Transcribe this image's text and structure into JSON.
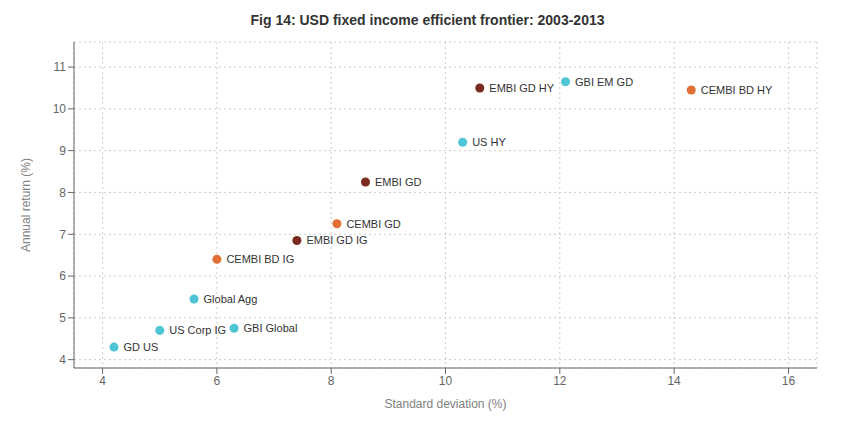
{
  "chart_data": {
    "type": "scatter",
    "title": "Fig 14: USD fixed income efficient frontier: 2003-2013",
    "xlabel": "Standard deviation (%)",
    "ylabel": "Annual return (%)",
    "x": [
      4.2,
      5.0,
      5.6,
      6.3,
      6.0,
      7.4,
      8.1,
      8.6,
      10.3,
      10.6,
      12.1,
      14.3
    ],
    "values": [
      4.3,
      4.7,
      5.45,
      4.75,
      6.4,
      6.85,
      7.25,
      8.25,
      9.2,
      10.5,
      10.65,
      10.45
    ],
    "labels": [
      "GD US",
      "US Corp IG",
      "Global Agg",
      "GBI Global",
      "CEMBI BD IG",
      "EMBI GD IG",
      "CEMBI GD",
      "EMBI GD",
      "US HY",
      "EMBI GD HY",
      "GBI EM GD",
      "CEMBI BD HY"
    ],
    "colors": [
      "#4ec5d4",
      "#4ec5d4",
      "#4ec5d4",
      "#4ec5d4",
      "#e07035",
      "#7b2a1e",
      "#e07035",
      "#7b2a1e",
      "#4ec5d4",
      "#7b2a1e",
      "#4ec5d4",
      "#e07035"
    ],
    "xlim": [
      3.5,
      16.5
    ],
    "ylim": [
      3.8,
      11.6
    ],
    "xticks": [
      4,
      6,
      8,
      10,
      12,
      14,
      16
    ],
    "yticks": [
      4,
      5,
      6,
      7,
      8,
      9,
      10,
      11
    ],
    "grid": true
  }
}
